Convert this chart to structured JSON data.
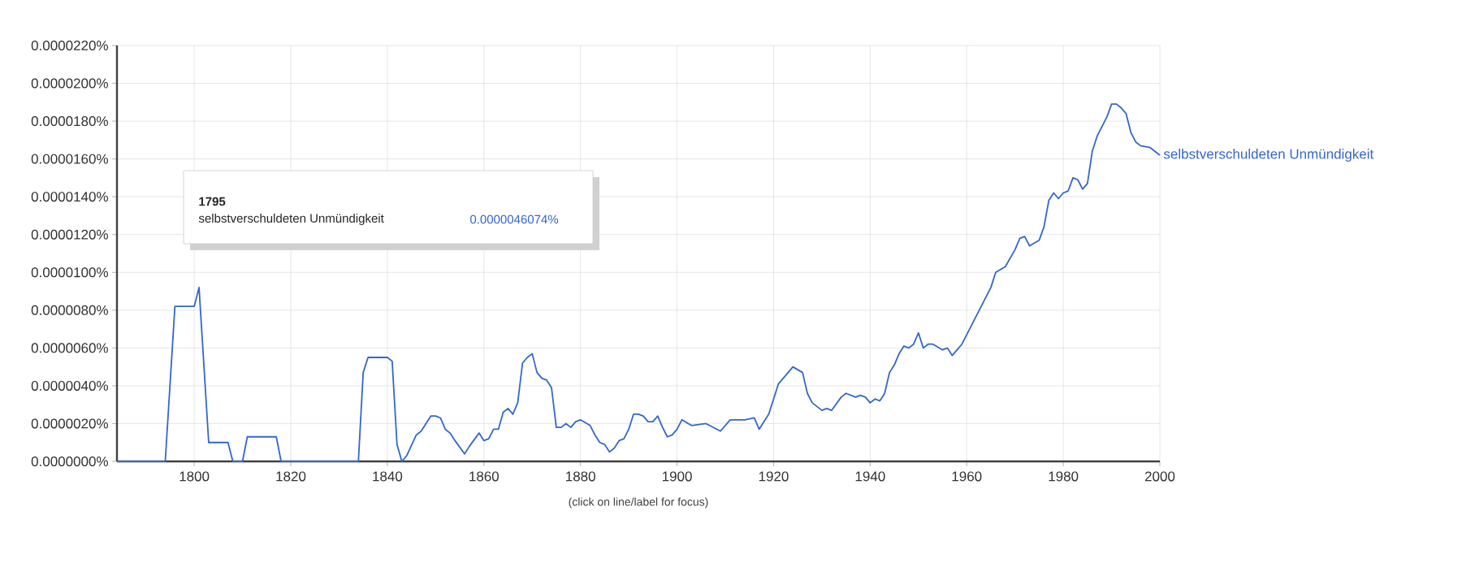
{
  "chart_data": {
    "type": "line",
    "xlabel": "(click on line/label for focus)",
    "xlim": [
      1784,
      2000
    ],
    "xticks": [
      {
        "value": 1800,
        "label": "1800"
      },
      {
        "value": 1820,
        "label": "1820"
      },
      {
        "value": 1840,
        "label": "1840"
      },
      {
        "value": 1860,
        "label": "1860"
      },
      {
        "value": 1880,
        "label": "1880"
      },
      {
        "value": 1900,
        "label": "1900"
      },
      {
        "value": 1920,
        "label": "1920"
      },
      {
        "value": 1940,
        "label": "1940"
      },
      {
        "value": 1960,
        "label": "1960"
      },
      {
        "value": 1980,
        "label": "1980"
      },
      {
        "value": 2000,
        "label": "2000"
      }
    ],
    "ylim": [
      0,
      2.2e-05
    ],
    "yticks": [
      {
        "value": 0,
        "label": "0.0000000%"
      },
      {
        "value": 2e-06,
        "label": "0.0000020%"
      },
      {
        "value": 4e-06,
        "label": "0.0000040%"
      },
      {
        "value": 6e-06,
        "label": "0.0000060%"
      },
      {
        "value": 8e-06,
        "label": "0.0000080%"
      },
      {
        "value": 1e-05,
        "label": "0.0000100%"
      },
      {
        "value": 1.2e-05,
        "label": "0.0000120%"
      },
      {
        "value": 1.4e-05,
        "label": "0.0000140%"
      },
      {
        "value": 1.6e-05,
        "label": "0.0000160%"
      },
      {
        "value": 1.8e-05,
        "label": "0.0000180%"
      },
      {
        "value": 2e-05,
        "label": "0.0000200%"
      },
      {
        "value": 2.2e-05,
        "label": "0.0000220%"
      }
    ],
    "grid": true,
    "line_style": "solid",
    "marker": "none",
    "annotations": [
      "1795",
      "selbstverschuldeten Unmündigkeit",
      "0.0000046074%"
    ],
    "series": [
      {
        "name": "selbstverschuldeten Unmündigkeit",
        "color": "#3366cc",
        "x": [
          1784,
          1794,
          1796,
          1800,
          1801,
          1803,
          1807,
          1808,
          1810,
          1811,
          1817,
          1818,
          1834,
          1835,
          1836,
          1840,
          1841,
          1842,
          1843,
          1844,
          1846,
          1847,
          1849,
          1850,
          1851,
          1852,
          1853,
          1854,
          1856,
          1857,
          1859,
          1860,
          1861,
          1862,
          1863,
          1864,
          1865,
          1866,
          1867,
          1868,
          1869,
          1870,
          1871,
          1872,
          1873,
          1874,
          1875,
          1876,
          1877,
          1878,
          1879,
          1880,
          1882,
          1883,
          1884,
          1885,
          1886,
          1887,
          1888,
          1889,
          1890,
          1891,
          1892,
          1893,
          1894,
          1895,
          1896,
          1897,
          1898,
          1899,
          1900,
          1901,
          1903,
          1906,
          1909,
          1911,
          1914,
          1916,
          1917,
          1919,
          1921,
          1922,
          1924,
          1926,
          1927,
          1928,
          1930,
          1931,
          1932,
          1934,
          1935,
          1937,
          1938,
          1939,
          1940,
          1941,
          1942,
          1943,
          1944,
          1945,
          1946,
          1947,
          1948,
          1949,
          1950,
          1951,
          1952,
          1953,
          1955,
          1956,
          1957,
          1958,
          1959,
          1961,
          1963,
          1965,
          1966,
          1968,
          1970,
          1971,
          1972,
          1973,
          1975,
          1976,
          1977,
          1978,
          1979,
          1980,
          1981,
          1982,
          1983,
          1984,
          1985,
          1986,
          1987,
          1988,
          1989,
          1990,
          1991,
          1992,
          1993,
          1994,
          1995,
          1996,
          1998,
          2000
        ],
        "values": [
          0,
          0,
          8.2e-06,
          8.2e-06,
          9.2e-06,
          1e-06,
          1e-06,
          0,
          0,
          1.3e-06,
          1.3e-06,
          0,
          0,
          4.7e-06,
          5.5e-06,
          5.5e-06,
          5.3e-06,
          9e-07,
          0,
          3e-07,
          1.4e-06,
          1.6e-06,
          2.4e-06,
          2.4e-06,
          2.3e-06,
          1.7e-06,
          1.5e-06,
          1.1e-06,
          4e-07,
          8e-07,
          1.5e-06,
          1.1e-06,
          1.2e-06,
          1.7e-06,
          1.7e-06,
          2.6e-06,
          2.8e-06,
          2.5e-06,
          3.1e-06,
          5.2e-06,
          5.5e-06,
          5.7e-06,
          4.7e-06,
          4.4e-06,
          4.3e-06,
          3.9e-06,
          1.8e-06,
          1.8e-06,
          2e-06,
          1.8e-06,
          2.1e-06,
          2.2e-06,
          1.9e-06,
          1.4e-06,
          1e-06,
          9e-07,
          5e-07,
          7e-07,
          1.1e-06,
          1.2e-06,
          1.7e-06,
          2.5e-06,
          2.5e-06,
          2.4e-06,
          2.1e-06,
          2.1e-06,
          2.4e-06,
          1.8e-06,
          1.3e-06,
          1.4e-06,
          1.7e-06,
          2.2e-06,
          1.9e-06,
          2e-06,
          1.6e-06,
          2.2e-06,
          2.2e-06,
          2.3e-06,
          1.7e-06,
          2.5e-06,
          4.1e-06,
          4.4e-06,
          5e-06,
          4.7e-06,
          3.6e-06,
          3.1e-06,
          2.7e-06,
          2.8e-06,
          2.7e-06,
          3.4e-06,
          3.6e-06,
          3.4e-06,
          3.5e-06,
          3.4e-06,
          3.1e-06,
          3.3e-06,
          3.2e-06,
          3.6e-06,
          4.7e-06,
          5.1e-06,
          5.7e-06,
          6.1e-06,
          6e-06,
          6.2e-06,
          6.8e-06,
          6e-06,
          6.2e-06,
          6.2e-06,
          5.9e-06,
          6e-06,
          5.6e-06,
          5.9e-06,
          6.2e-06,
          7.2e-06,
          8.2e-06,
          9.2e-06,
          1e-05,
          1.03e-05,
          1.12e-05,
          1.18e-05,
          1.19e-05,
          1.14e-05,
          1.17e-05,
          1.24e-05,
          1.38e-05,
          1.42e-05,
          1.39e-05,
          1.42e-05,
          1.43e-05,
          1.5e-05,
          1.49e-05,
          1.44e-05,
          1.47e-05,
          1.64e-05,
          1.72e-05,
          1.77e-05,
          1.82e-05,
          1.89e-05,
          1.89e-05,
          1.87e-05,
          1.84e-05,
          1.74e-05,
          1.69e-05,
          1.67e-05,
          1.66e-05,
          1.62e-05
        ]
      }
    ]
  }
}
